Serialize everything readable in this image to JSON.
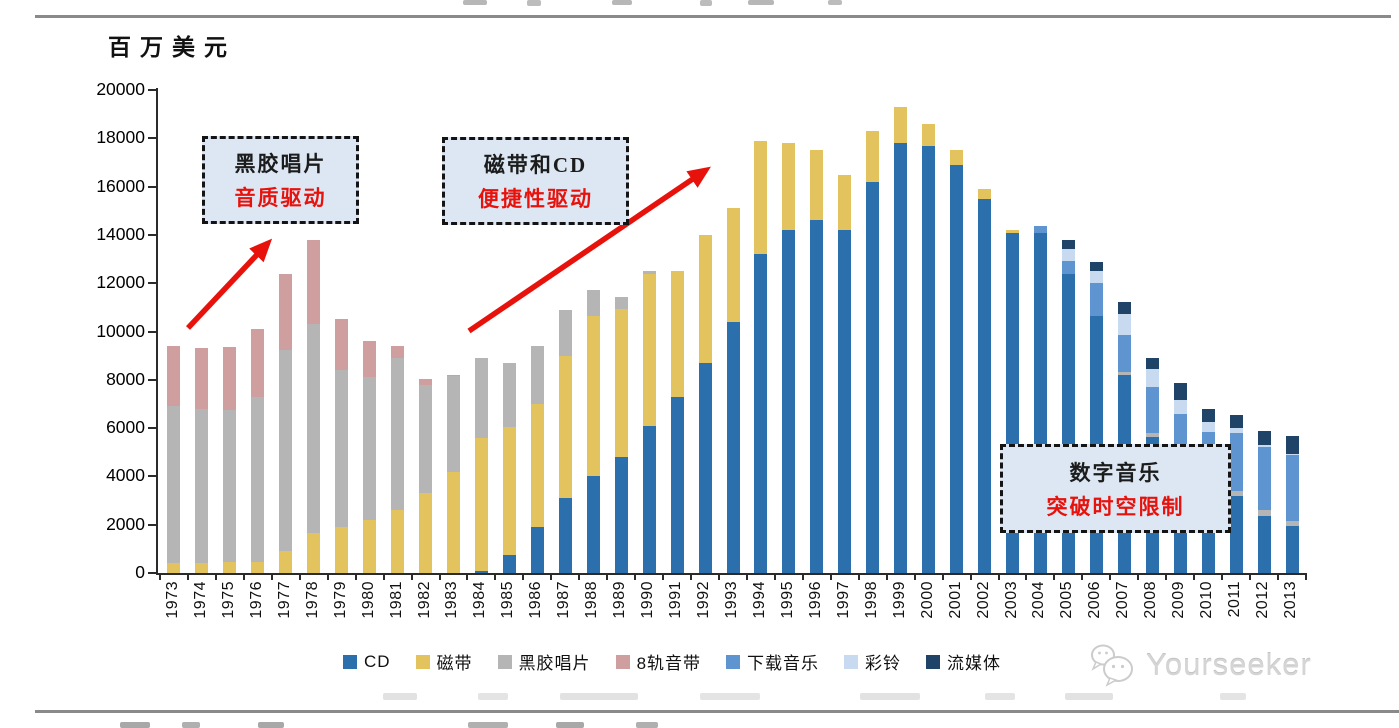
{
  "y_axis_title": "百万美元",
  "chart_data": {
    "type": "bar",
    "stacked": true,
    "title": "",
    "ylabel": "百万美元",
    "ylim": [
      0,
      20000
    ],
    "yticks": [
      0,
      2000,
      4000,
      6000,
      8000,
      10000,
      12000,
      14000,
      16000,
      18000,
      20000
    ],
    "grid": false,
    "legend_position": "bottom",
    "categories": [
      1973,
      1974,
      1975,
      1976,
      1977,
      1978,
      1979,
      1980,
      1981,
      1982,
      1983,
      1984,
      1985,
      1986,
      1987,
      1988,
      1989,
      1990,
      1991,
      1992,
      1993,
      1994,
      1995,
      1996,
      1997,
      1998,
      1999,
      2000,
      2001,
      2002,
      2003,
      2004,
      2005,
      2006,
      2007,
      2008,
      2009,
      2010,
      2011,
      2012,
      2013
    ],
    "series": [
      {
        "name": "CD",
        "color": "#2c6fad",
        "values": [
          0,
          0,
          0,
          0,
          0,
          0,
          0,
          0,
          0,
          0,
          0,
          100,
          750,
          1900,
          3100,
          4000,
          4800,
          6100,
          7300,
          8700,
          10400,
          13200,
          14200,
          14600,
          14200,
          16200,
          17800,
          17700,
          16900,
          15500,
          14100,
          14100,
          12400,
          10650,
          8200,
          5650,
          4600,
          3200,
          3200,
          2350,
          1950
        ]
      },
      {
        "name": "磁带",
        "color": "#e2c35d",
        "values": [
          400,
          400,
          450,
          450,
          900,
          1650,
          1900,
          2200,
          2600,
          3300,
          4200,
          5500,
          5300,
          5100,
          5900,
          6650,
          6150,
          6300,
          5200,
          5300,
          4700,
          4700,
          3600,
          2900,
          2300,
          2100,
          1500,
          900,
          600,
          400,
          100,
          0,
          0,
          0,
          0,
          0,
          0,
          0,
          0,
          0,
          0
        ]
      },
      {
        "name": "黑胶唱片",
        "color": "#b5b5b5",
        "values": [
          6500,
          6400,
          6300,
          6850,
          8350,
          8650,
          6500,
          5900,
          6300,
          4500,
          3950,
          3300,
          2650,
          2400,
          1900,
          1050,
          500,
          100,
          0,
          0,
          0,
          0,
          0,
          0,
          0,
          0,
          0,
          0,
          0,
          0,
          0,
          0,
          0,
          0,
          140,
          140,
          150,
          150,
          210,
          250,
          220
        ]
      },
      {
        "name": "8轨音带",
        "color": "#cf9e9e",
        "values": [
          2500,
          2500,
          2600,
          2800,
          3150,
          3500,
          2100,
          1500,
          500,
          250,
          50,
          0,
          0,
          0,
          0,
          0,
          0,
          0,
          0,
          0,
          0,
          0,
          0,
          0,
          0,
          0,
          0,
          0,
          0,
          0,
          0,
          0,
          0,
          0,
          0,
          0,
          0,
          0,
          0,
          0,
          0
        ]
      },
      {
        "name": "下载音乐",
        "color": "#5e94cf",
        "values": [
          0,
          0,
          0,
          0,
          0,
          0,
          0,
          0,
          0,
          0,
          0,
          0,
          0,
          0,
          0,
          0,
          0,
          0,
          0,
          0,
          0,
          0,
          0,
          0,
          0,
          0,
          0,
          0,
          0,
          0,
          0,
          250,
          500,
          1350,
          1500,
          1900,
          1850,
          2500,
          2400,
          2600,
          2700
        ]
      },
      {
        "name": "彩铃",
        "color": "#c8daf0",
        "values": [
          0,
          0,
          0,
          0,
          0,
          0,
          0,
          0,
          0,
          0,
          0,
          0,
          0,
          0,
          0,
          0,
          0,
          0,
          0,
          0,
          0,
          0,
          0,
          0,
          0,
          0,
          0,
          0,
          0,
          0,
          0,
          0,
          500,
          500,
          900,
          750,
          550,
          400,
          200,
          100,
          50
        ]
      },
      {
        "name": "流媒体",
        "color": "#1f4467",
        "values": [
          0,
          0,
          0,
          0,
          0,
          0,
          0,
          0,
          0,
          0,
          0,
          0,
          0,
          0,
          0,
          0,
          0,
          0,
          0,
          0,
          0,
          0,
          0,
          0,
          0,
          0,
          0,
          0,
          0,
          0,
          0,
          0,
          400,
          400,
          500,
          450,
          700,
          550,
          550,
          600,
          750
        ]
      }
    ]
  },
  "annotations": {
    "box1": {
      "line1": "黑胶唱片",
      "line2": "音质驱动"
    },
    "box2": {
      "line1": "磁带和CD",
      "line2": "便捷性驱动"
    },
    "box3": {
      "line1": "数字音乐",
      "line2": "突破时空限制"
    }
  },
  "colors": {
    "accent_red": "#e8120c",
    "callout_bg": "#dce7f3",
    "axis": "#2b2b2b"
  },
  "watermark": {
    "text": "Yourseeker"
  }
}
